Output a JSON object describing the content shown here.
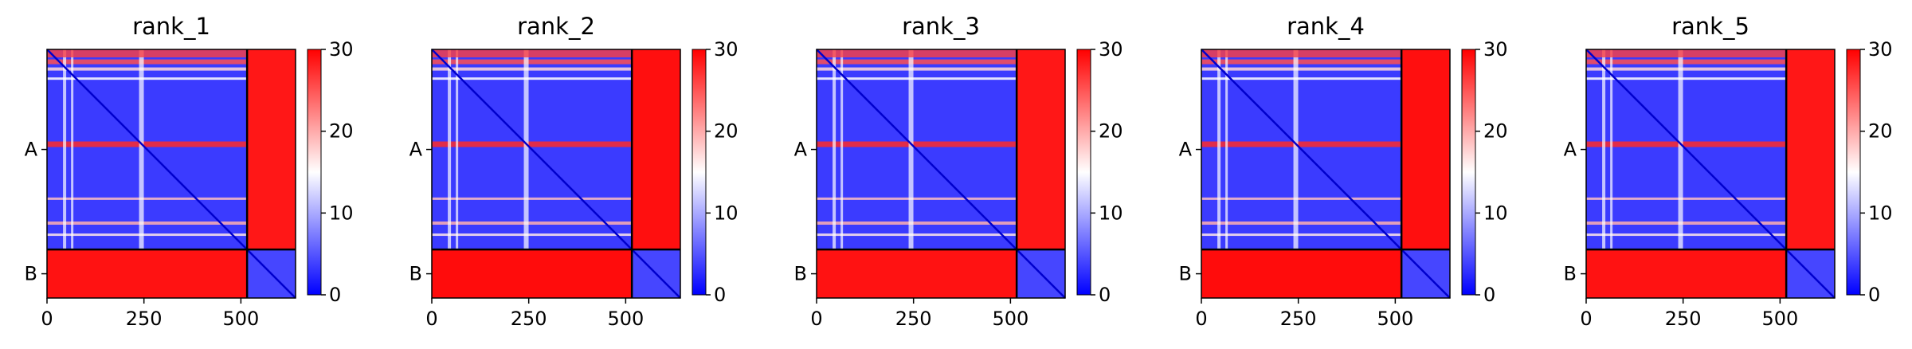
{
  "colors": {
    "low": "#0000ff",
    "mid": "#ffffff",
    "high": "#ff0000",
    "divider": "#000000"
  },
  "chart_data": [
    {
      "type": "heatmap",
      "title": "rank_1",
      "x_ticks": [
        0,
        250,
        500
      ],
      "y_tick_labels": [
        "A",
        "B"
      ],
      "chain_lengths": [
        516,
        125
      ],
      "total_length": 641,
      "colorbar": {
        "min": 0,
        "max": 30,
        "ticks": [
          0,
          10,
          20,
          30
        ]
      },
      "mean_interchain_value": 27
    },
    {
      "type": "heatmap",
      "title": "rank_2",
      "x_ticks": [
        0,
        250,
        500
      ],
      "y_tick_labels": [
        "A",
        "B"
      ],
      "chain_lengths": [
        516,
        125
      ],
      "total_length": 641,
      "colorbar": {
        "min": 0,
        "max": 30,
        "ticks": [
          0,
          10,
          20,
          30
        ]
      },
      "mean_interchain_value": 28
    },
    {
      "type": "heatmap",
      "title": "rank_3",
      "x_ticks": [
        0,
        250,
        500
      ],
      "y_tick_labels": [
        "A",
        "B"
      ],
      "chain_lengths": [
        516,
        125
      ],
      "total_length": 641,
      "colorbar": {
        "min": 0,
        "max": 30,
        "ticks": [
          0,
          10,
          20,
          30
        ]
      },
      "mean_interchain_value": 27
    },
    {
      "type": "heatmap",
      "title": "rank_4",
      "x_ticks": [
        0,
        250,
        500
      ],
      "y_tick_labels": [
        "A",
        "B"
      ],
      "chain_lengths": [
        516,
        125
      ],
      "total_length": 641,
      "colorbar": {
        "min": 0,
        "max": 30,
        "ticks": [
          0,
          10,
          20,
          30
        ]
      },
      "mean_interchain_value": 28
    },
    {
      "type": "heatmap",
      "title": "rank_5",
      "x_ticks": [
        0,
        250,
        500
      ],
      "y_tick_labels": [
        "A",
        "B"
      ],
      "chain_lengths": [
        516,
        125
      ],
      "total_length": 641,
      "colorbar": {
        "min": 0,
        "max": 30,
        "ticks": [
          0,
          10,
          20,
          30
        ]
      },
      "mean_interchain_value": 27
    }
  ]
}
